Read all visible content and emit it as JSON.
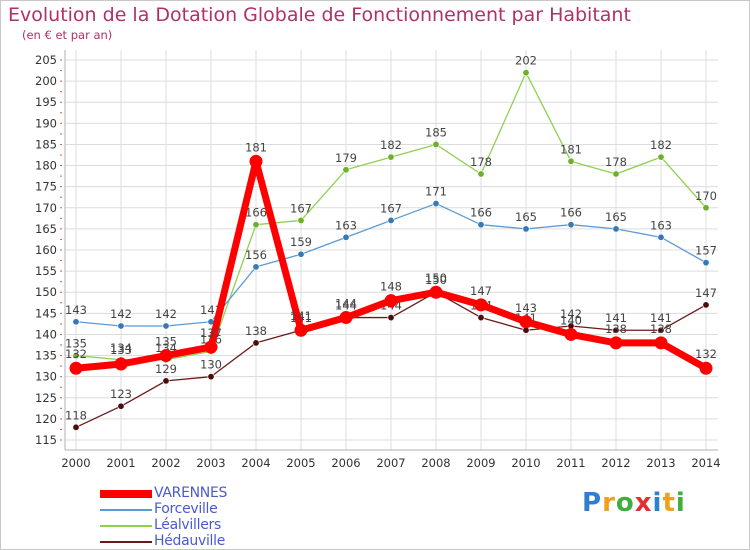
{
  "chart_data": {
    "type": "line",
    "title": "Evolution de la Dotation Globale de Fonctionnement par Habitant",
    "subtitle": "(en € et par an)",
    "x": [
      "2000",
      "2001",
      "2002",
      "2003",
      "2004",
      "2005",
      "2006",
      "2007",
      "2008",
      "2009",
      "2010",
      "2011",
      "2012",
      "2013",
      "2014"
    ],
    "ylim": [
      115,
      205
    ],
    "yticks": [
      115,
      120,
      125,
      130,
      135,
      140,
      145,
      150,
      155,
      160,
      165,
      170,
      175,
      180,
      185,
      190,
      195,
      200,
      205
    ],
    "grid": true,
    "legend_position": "bottom-left",
    "series": [
      {
        "name": "VARENNES",
        "color": "#ff0000",
        "values": [
          132,
          133,
          135,
          137,
          181,
          141,
          144,
          148,
          150,
          147,
          143,
          140,
          138,
          138,
          132
        ]
      },
      {
        "name": "Forceville",
        "color": "#5b9bd5",
        "values": [
          143,
          142,
          142,
          143,
          156,
          159,
          163,
          167,
          171,
          166,
          165,
          166,
          165,
          163,
          157
        ]
      },
      {
        "name": "Léalvillers",
        "color": "#8fd14f",
        "values": [
          135,
          134,
          134,
          136,
          166,
          167,
          179,
          182,
          185,
          178,
          202,
          181,
          178,
          182,
          170
        ]
      },
      {
        "name": "Hédauville",
        "color": "#6b1a1a",
        "values": [
          118,
          123,
          129,
          130,
          138,
          141,
          144,
          144,
          150,
          144,
          141,
          142,
          141,
          141,
          147
        ]
      }
    ]
  },
  "logo": {
    "text": "Proxiti"
  }
}
